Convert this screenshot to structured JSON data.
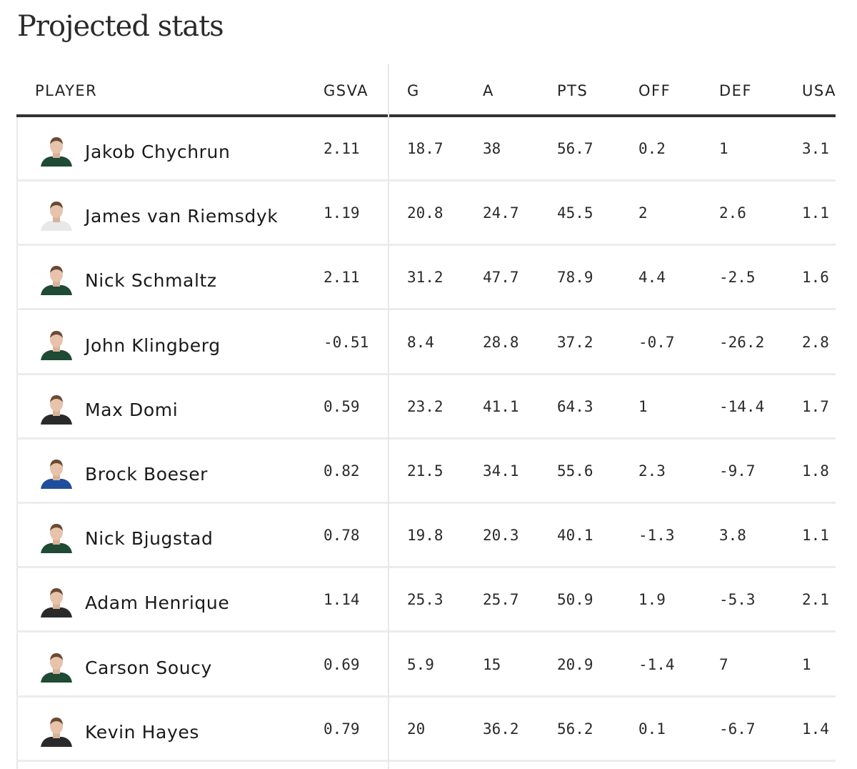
{
  "page": {
    "title": "Projected stats"
  },
  "table": {
    "columns": [
      "PLAYER",
      "GSVA",
      "G",
      "A",
      "PTS",
      "OFF",
      "DEF",
      "USA"
    ],
    "rows": [
      {
        "player": "Jakob Chychrun",
        "jersey": "#1f4a33",
        "stats": [
          "2.11",
          "18.7",
          "38",
          "56.7",
          "0.2",
          "1",
          "3.1"
        ]
      },
      {
        "player": "James van Riemsdyk",
        "jersey": "#e8e8e8",
        "stats": [
          "1.19",
          "20.8",
          "24.7",
          "45.5",
          "2",
          "2.6",
          "1.1"
        ]
      },
      {
        "player": "Nick Schmaltz",
        "jersey": "#1f4a33",
        "stats": [
          "2.11",
          "31.2",
          "47.7",
          "78.9",
          "4.4",
          "-2.5",
          "1.6"
        ]
      },
      {
        "player": "John Klingberg",
        "jersey": "#1f4a33",
        "stats": [
          "-0.51",
          "8.4",
          "28.8",
          "37.2",
          "-0.7",
          "-26.2",
          "2.8"
        ]
      },
      {
        "player": "Max Domi",
        "jersey": "#2a2a2a",
        "stats": [
          "0.59",
          "23.2",
          "41.1",
          "64.3",
          "1",
          "-14.4",
          "1.7"
        ]
      },
      {
        "player": "Brock Boeser",
        "jersey": "#1e4f9c",
        "stats": [
          "0.82",
          "21.5",
          "34.1",
          "55.6",
          "2.3",
          "-9.7",
          "1.8"
        ]
      },
      {
        "player": "Nick Bjugstad",
        "jersey": "#1f4a33",
        "stats": [
          "0.78",
          "19.8",
          "20.3",
          "40.1",
          "-1.3",
          "3.8",
          "1.1"
        ]
      },
      {
        "player": "Adam Henrique",
        "jersey": "#2a2a2a",
        "stats": [
          "1.14",
          "25.3",
          "25.7",
          "50.9",
          "1.9",
          "-5.3",
          "2.1"
        ]
      },
      {
        "player": "Carson Soucy",
        "jersey": "#1f4a33",
        "stats": [
          "0.69",
          "5.9",
          "15",
          "20.9",
          "-1.4",
          "7",
          "1"
        ]
      },
      {
        "player": "Kevin Hayes",
        "jersey": "#2a2a2a",
        "stats": [
          "0.79",
          "20",
          "36.2",
          "56.2",
          "0.1",
          "-6.7",
          "1.4"
        ]
      }
    ]
  }
}
